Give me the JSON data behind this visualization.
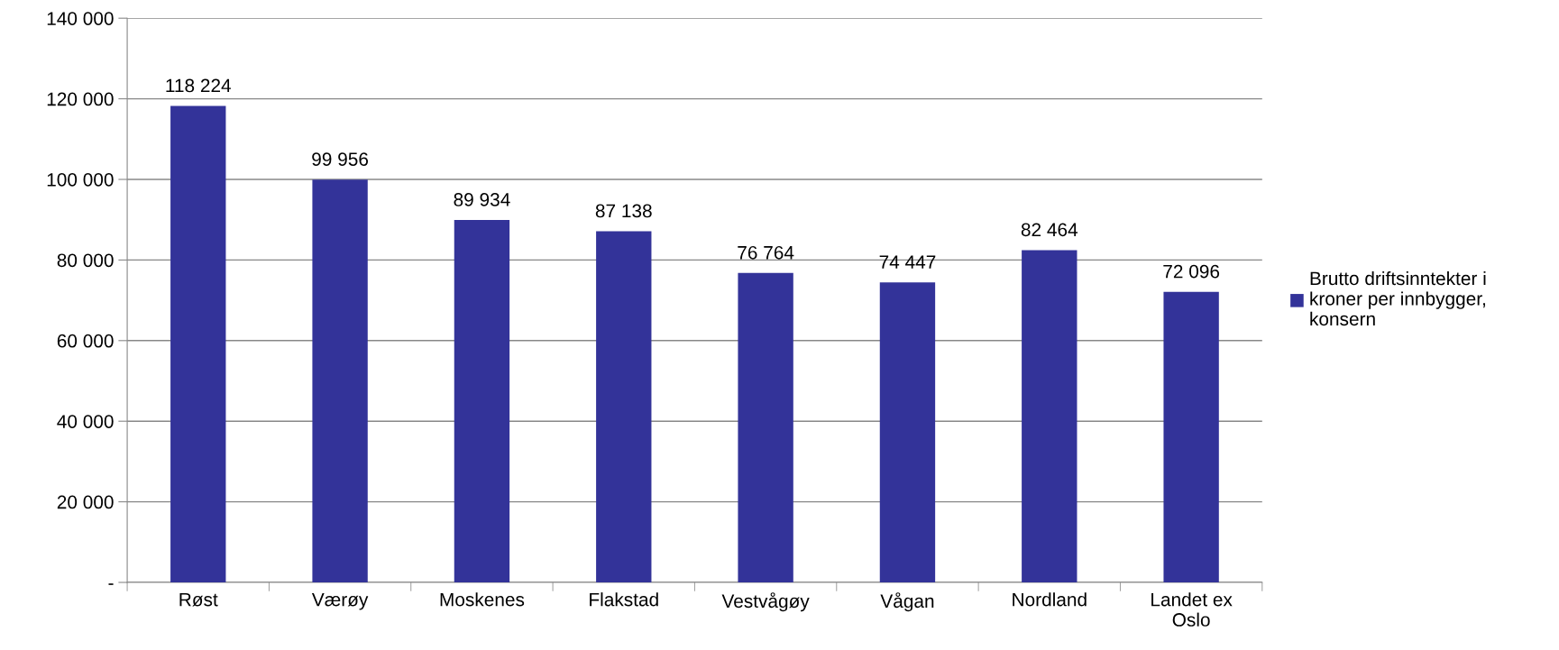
{
  "chart_data": {
    "type": "bar",
    "categories": [
      "Røst",
      "Værøy",
      "Moskenes",
      "Flakstad",
      "Vestvågøy",
      "Vågan",
      "Nordland",
      "Landet ex Oslo"
    ],
    "series": [
      {
        "name": "Brutto driftsinntekter i kroner per innbygger, konsern",
        "color": "#333399",
        "values": [
          118224,
          99956,
          89934,
          87138,
          76764,
          74447,
          82464,
          72096
        ],
        "value_labels": [
          "118 224",
          "99 956",
          "89 934",
          "87 138",
          "76 764",
          "74 447",
          "82 464",
          "72 096"
        ]
      }
    ],
    "ylim": [
      0,
      140000
    ],
    "yticks": [
      {
        "value": 0,
        "label": "-"
      },
      {
        "value": 20000,
        "label": "20 000"
      },
      {
        "value": 40000,
        "label": "40 000"
      },
      {
        "value": 60000,
        "label": "60 000"
      },
      {
        "value": 80000,
        "label": "80 000"
      },
      {
        "value": 100000,
        "label": "100 000"
      },
      {
        "value": 120000,
        "label": "120 000"
      },
      {
        "value": 140000,
        "label": "140 000"
      }
    ],
    "grid": "y",
    "legend": "right"
  }
}
